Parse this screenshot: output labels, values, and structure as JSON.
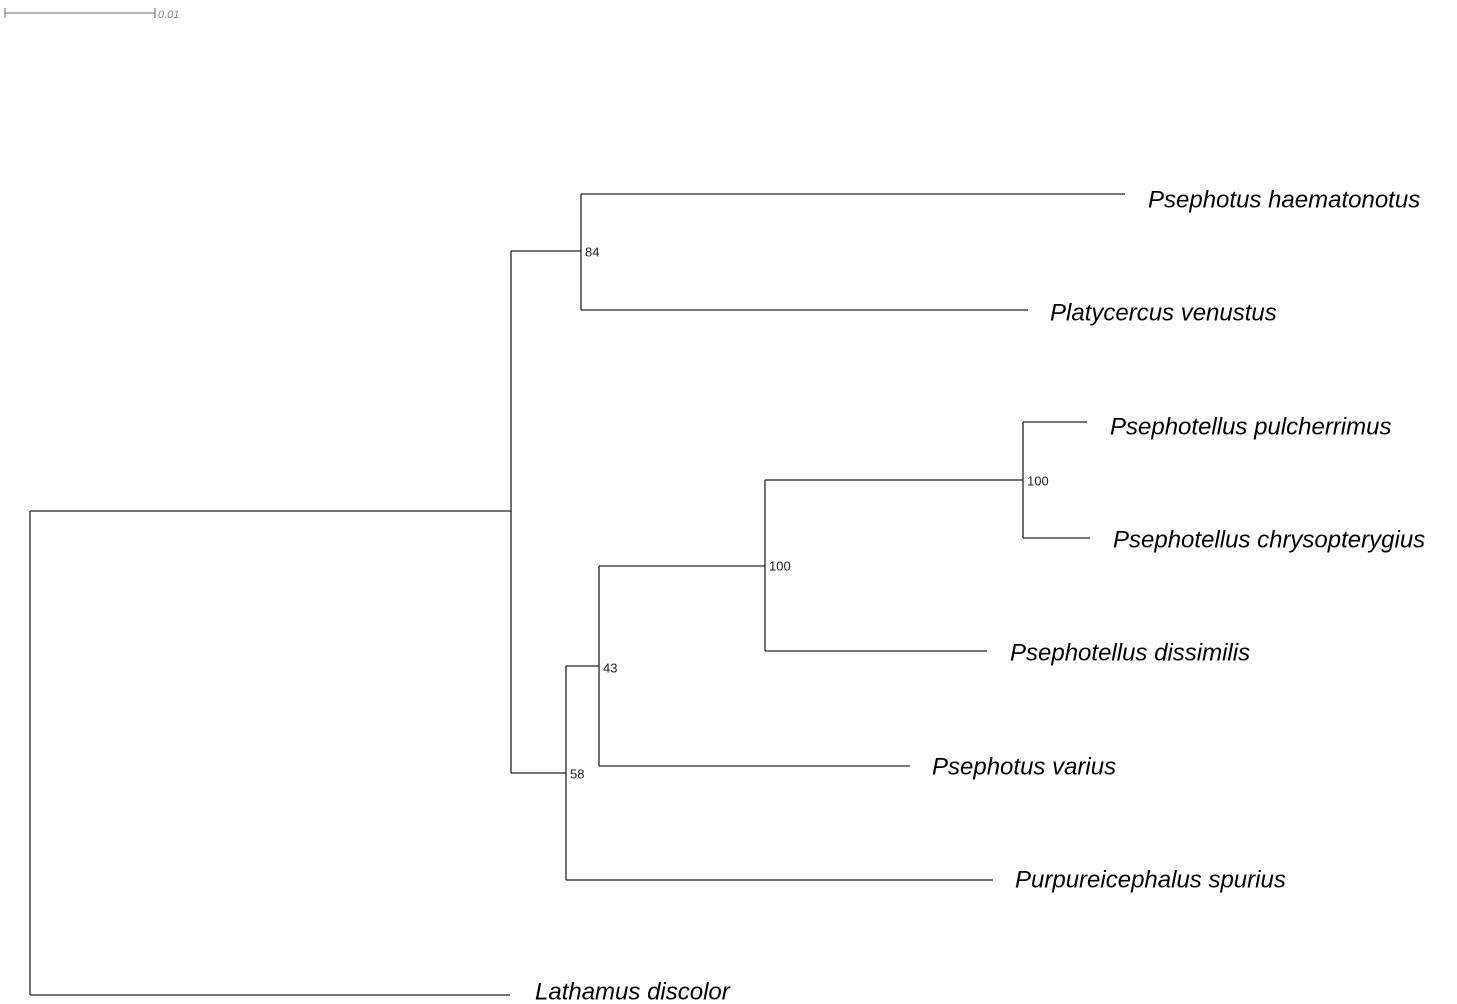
{
  "scale_bar": {
    "label": "0.01"
  },
  "leaves": [
    "Psephotus haematonotus",
    "Platycercus venustus",
    "Psephotellus pulcherrimus",
    "Psephotellus chrysopterygius",
    "Psephotellus dissimilis",
    "Psephotus varius",
    "Purpureicephalus spurius",
    "Lathamus discolor"
  ],
  "support": [
    84,
    100,
    100,
    43,
    58
  ]
}
